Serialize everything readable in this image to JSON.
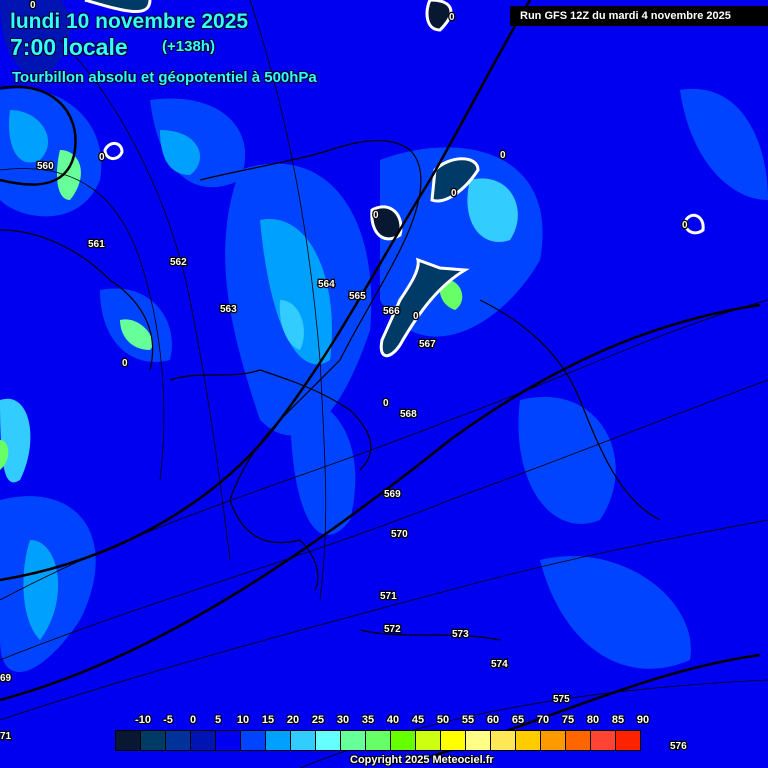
{
  "header": {
    "date": "lundi 10 novembre 2025",
    "time": "7:00 locale",
    "offset": "(+138h)",
    "parameter": "Tourbillon absolu et géopotentiel à 500hPa",
    "run": "Run GFS 12Z du mardi 4 novembre 2025"
  },
  "contour_labels": [
    "560",
    "561",
    "562",
    "563",
    "564",
    "565",
    "566",
    "567",
    "568",
    "569",
    "570",
    "571",
    "572",
    "573",
    "574",
    "575",
    "576",
    "69",
    "71"
  ],
  "zero_label": "0",
  "legend": {
    "labels": [
      "-10",
      "-5",
      "0",
      "5",
      "10",
      "15",
      "20",
      "25",
      "30",
      "35",
      "40",
      "45",
      "50",
      "55",
      "60",
      "65",
      "70",
      "75",
      "80",
      "85",
      "90"
    ],
    "colors": [
      "#081832",
      "#003a66",
      "#00339a",
      "#0014b4",
      "#0000f0",
      "#0044ff",
      "#00a0ff",
      "#33ccff",
      "#66ffff",
      "#66ff99",
      "#66ff66",
      "#66ff00",
      "#ccff11",
      "#ffff00",
      "#ffff88",
      "#ffe855",
      "#ffcc00",
      "#ff9900",
      "#ff6600",
      "#ff4433",
      "#ff2200"
    ]
  },
  "copyright": "Copyright 2025 Meteociel.fr"
}
